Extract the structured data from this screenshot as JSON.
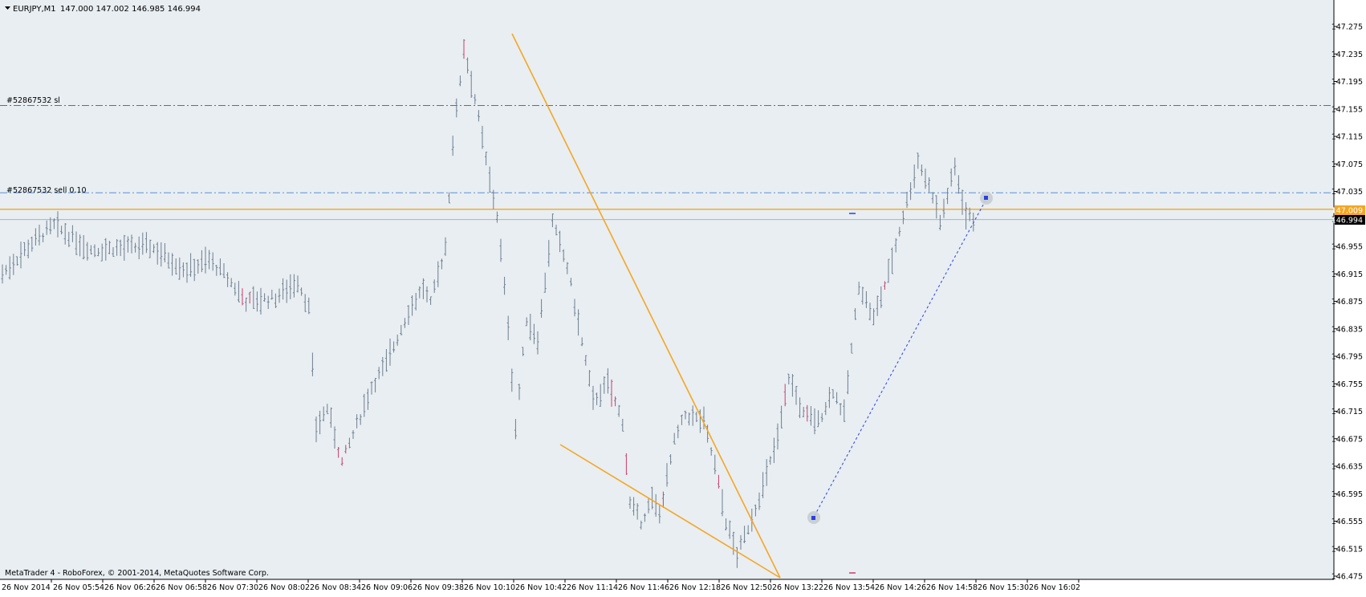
{
  "chart_header": {
    "symbol_timeframe": "EURJPY,M1",
    "ohlc": "147.000 147.002 146.985 146.994"
  },
  "footer": {
    "copyright": "MetaTrader 4 - RoboForex, © 2001-2014, MetaQuotes Software Corp."
  },
  "order_lines": {
    "stop_loss_label": "#52867532 sl",
    "stop_loss_price": 147.16,
    "sell_label": "#52867532 sell 0.10",
    "sell_price": 147.033
  },
  "price_labels": {
    "orange_level": "147.009",
    "bid": "146.994"
  },
  "colors": {
    "background": "#e8eef2",
    "bars": "#6f7f8e",
    "bear_accent": "#d2386b",
    "stop_loss_line": "#d2386b",
    "sell_line": "#5b8fd6",
    "orange": "#f5a623",
    "bid_line": "#a9b6c0",
    "blue_trend": "#2c3fe0"
  },
  "chart_data": {
    "type": "candlestick-bars",
    "symbol": "EURJPY",
    "timeframe": "M1",
    "ylim": [
      146.465,
      147.295
    ],
    "y_ticks": [
      "147.275",
      "147.235",
      "147.195",
      "147.155",
      "147.115",
      "147.075",
      "147.035",
      "146.995",
      "146.955",
      "146.915",
      "146.875",
      "146.835",
      "146.795",
      "146.755",
      "146.715",
      "146.675",
      "146.635",
      "146.595",
      "146.555",
      "146.515",
      "146.475"
    ],
    "x_ticks": [
      "26 Nov 2014",
      "26 Nov 05:54",
      "26 Nov 06:26",
      "26 Nov 06:58",
      "26 Nov 07:30",
      "26 Nov 08:02",
      "26 Nov 08:34",
      "26 Nov 09:06",
      "26 Nov 09:38",
      "26 Nov 10:10",
      "26 Nov 10:42",
      "26 Nov 11:14",
      "26 Nov 11:46",
      "26 Nov 12:18",
      "26 Nov 12:50",
      "26 Nov 13:22",
      "26 Nov 13:54",
      "26 Nov 14:26",
      "26 Nov 14:58",
      "26 Nov 15:30",
      "26 Nov 16:02"
    ],
    "horizontal_levels": [
      {
        "price": 147.16,
        "style": "dash-dot",
        "color": "#d2386b"
      },
      {
        "price": 147.033,
        "style": "dash-dot",
        "color": "#5b8fd6"
      },
      {
        "price": 147.009,
        "style": "solid",
        "color": "#f5a623"
      },
      {
        "price": 146.994,
        "style": "solid",
        "color": "#a9b6c0"
      }
    ],
    "trendlines": [
      {
        "from": {
          "time": "26 Nov 10:45",
          "price": 147.265
        },
        "to": {
          "time": "26 Nov 13:20",
          "price": 146.475
        },
        "color": "#f5a623"
      },
      {
        "from": {
          "time": "26 Nov 10:53",
          "price": 146.665
        },
        "to": {
          "time": "26 Nov 13:20",
          "price": 146.475
        },
        "color": "#f5a623"
      },
      {
        "from": {
          "time": "26 Nov 13:35",
          "price": 146.56
        },
        "to": {
          "time": "26 Nov 15:28",
          "price": 147.025
        },
        "color": "#2c3fe0",
        "style": "dotted"
      }
    ],
    "path_anchors": [
      {
        "time_index": 0,
        "price": 146.915
      },
      {
        "time_index": 8,
        "price": 146.96
      },
      {
        "time_index": 14,
        "price": 146.985
      },
      {
        "time_index": 24,
        "price": 146.95
      },
      {
        "time_index": 40,
        "price": 146.955
      },
      {
        "time_index": 50,
        "price": 146.92
      },
      {
        "time_index": 56,
        "price": 146.935
      },
      {
        "time_index": 60,
        "price": 146.915
      },
      {
        "time_index": 66,
        "price": 146.875
      },
      {
        "time_index": 74,
        "price": 146.88
      },
      {
        "time_index": 80,
        "price": 146.905
      },
      {
        "time_index": 83,
        "price": 146.865
      },
      {
        "time_index": 85,
        "price": 146.69
      },
      {
        "time_index": 88,
        "price": 146.72
      },
      {
        "time_index": 92,
        "price": 146.64
      },
      {
        "time_index": 100,
        "price": 146.75
      },
      {
        "time_index": 104,
        "price": 146.785
      },
      {
        "time_index": 110,
        "price": 146.86
      },
      {
        "time_index": 114,
        "price": 146.895
      },
      {
        "time_index": 116,
        "price": 146.87
      },
      {
        "time_index": 120,
        "price": 146.955
      },
      {
        "time_index": 122,
        "price": 147.105
      },
      {
        "time_index": 125,
        "price": 147.245
      },
      {
        "time_index": 128,
        "price": 147.17
      },
      {
        "time_index": 132,
        "price": 147.05
      },
      {
        "time_index": 134,
        "price": 147.0
      },
      {
        "time_index": 137,
        "price": 146.84
      },
      {
        "time_index": 139,
        "price": 146.69
      },
      {
        "time_index": 142,
        "price": 146.85
      },
      {
        "time_index": 145,
        "price": 146.82
      },
      {
        "time_index": 149,
        "price": 146.99
      },
      {
        "time_index": 153,
        "price": 146.925
      },
      {
        "time_index": 157,
        "price": 146.815
      },
      {
        "time_index": 160,
        "price": 146.73
      },
      {
        "time_index": 164,
        "price": 146.755
      },
      {
        "time_index": 168,
        "price": 146.7
      },
      {
        "time_index": 170,
        "price": 146.58
      },
      {
        "time_index": 173,
        "price": 146.555
      },
      {
        "time_index": 176,
        "price": 146.585
      },
      {
        "time_index": 178,
        "price": 146.565
      },
      {
        "time_index": 182,
        "price": 146.67
      },
      {
        "time_index": 185,
        "price": 146.71
      },
      {
        "time_index": 190,
        "price": 146.7
      },
      {
        "time_index": 193,
        "price": 146.635
      },
      {
        "time_index": 196,
        "price": 146.555
      },
      {
        "time_index": 199,
        "price": 146.505
      },
      {
        "time_index": 203,
        "price": 146.56
      },
      {
        "time_index": 206,
        "price": 146.605
      },
      {
        "time_index": 210,
        "price": 146.675
      },
      {
        "time_index": 213,
        "price": 146.765
      },
      {
        "time_index": 217,
        "price": 146.71
      },
      {
        "time_index": 221,
        "price": 146.7
      },
      {
        "time_index": 225,
        "price": 146.745
      },
      {
        "time_index": 228,
        "price": 146.71
      },
      {
        "time_index": 232,
        "price": 146.9
      },
      {
        "time_index": 236,
        "price": 146.85
      },
      {
        "time_index": 240,
        "price": 146.915
      },
      {
        "time_index": 244,
        "price": 147.0
      },
      {
        "time_index": 248,
        "price": 147.08
      },
      {
        "time_index": 252,
        "price": 147.03
      },
      {
        "time_index": 254,
        "price": 146.99
      },
      {
        "time_index": 258,
        "price": 147.07
      },
      {
        "time_index": 261,
        "price": 147.0
      },
      {
        "time_index": 263,
        "price": 146.994
      }
    ]
  }
}
